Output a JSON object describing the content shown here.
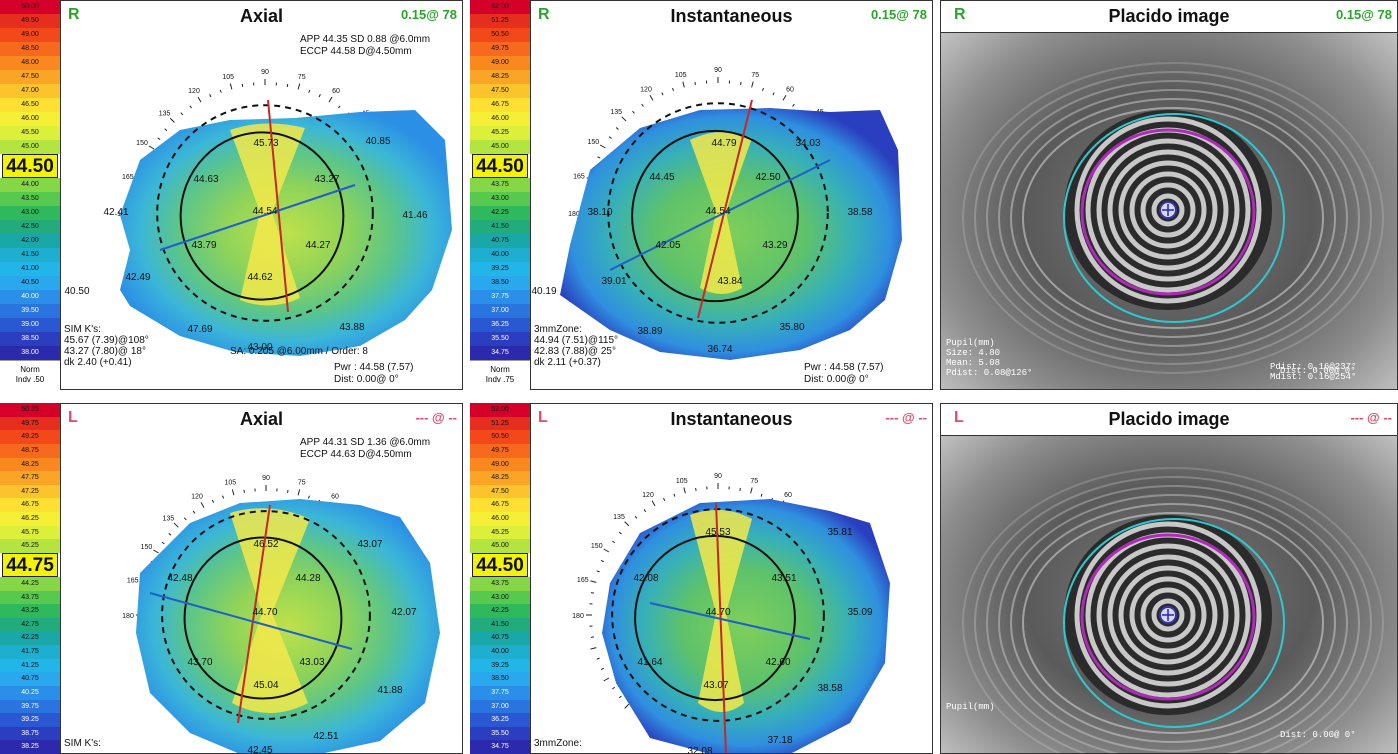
{
  "colors": {
    "scale_steps": [
      "#d5002a",
      "#e62e1e",
      "#f2481a",
      "#f76a1d",
      "#f9881f",
      "#fba526",
      "#fcc42c",
      "#fde032",
      "#f5ef35",
      "#dcef3a",
      "#b4e43f",
      "#86d747",
      "#58c94f",
      "#2fb95c",
      "#22ac7d",
      "#19a7a8",
      "#1eaed0",
      "#22b6e8",
      "#2aa8ee",
      "#2a8fe9",
      "#2a74e0",
      "#2a58d2",
      "#2b3ec0",
      "#2c2aac",
      "#291c8e"
    ],
    "accent_green": "#2aa52a",
    "accent_pink": "#e04a6a"
  },
  "panels": [
    {
      "id": "r_axial",
      "eye": "R",
      "title": "Axial",
      "corner": "0.15@ 78",
      "scale": {
        "top_values": [
          "50.00",
          "49.50",
          "49.00",
          "48.50",
          "48.00",
          "47.50",
          "47.00",
          "46.50",
          "46.00",
          "45.50",
          "45.00"
        ],
        "mid_value": "44.50",
        "bottom_values": [
          "44.00",
          "43.50",
          "43.00",
          "42.50",
          "42.00",
          "41.50",
          "41.00",
          "40.50",
          "40.00",
          "39.50",
          "39.00",
          "38.50",
          "38.00"
        ],
        "norm": "Norm",
        "indv": "Indv .50"
      },
      "info_top": [
        "APP 44.35 SD 0.88 @6.0mm",
        "ECCP 44.58 D@4.50mm"
      ],
      "sim": [
        "SIM K's:",
        "45.67 (7.39)@108°",
        "43.27 (7.80)@ 18°",
        "dk 2.40 (+0.41)"
      ],
      "sa": "SA: 0.205 @6.00mm / Order: 8",
      "pwr": "Pwr :  44.58 (7.57)",
      "dist": "Dist:  0.00@  0°",
      "values": [
        "45.73",
        "44.63",
        "43.27",
        "43.79",
        "44.27",
        "44.62",
        "42.41",
        "42.49",
        "40.50",
        "40.85",
        "41.46",
        "47.69",
        "43.00",
        "43.88",
        "44.54"
      ]
    },
    {
      "id": "r_inst",
      "eye": "R",
      "title": "Instantaneous",
      "corner": "0.15@ 78",
      "scale": {
        "top_values": [
          "52.00",
          "51.25",
          "50.50",
          "49.75",
          "49.00",
          "48.25",
          "47.50",
          "46.75",
          "46.00",
          "45.25",
          "45.00"
        ],
        "mid_value": "44.50",
        "bottom_values": [
          "43.75",
          "43.00",
          "42.25",
          "41.50",
          "40.75",
          "40.00",
          "39.25",
          "38.50",
          "37.75",
          "37.00",
          "36.25",
          "35.50",
          "34.75"
        ],
        "norm": "Norm",
        "indv": "Indv .75"
      },
      "info_top": [],
      "sim": [
        "3mmZone:",
        "44.94 (7.51)@115°",
        "42.83 (7.88)@ 25°",
        "dk 2.11 (+0.37)"
      ],
      "sa": "",
      "pwr": "Pwr :  44.58 (7.57)",
      "dist": "Dist:  0.00@  0°",
      "values": [
        "44.79",
        "44.45",
        "42.50",
        "42.05",
        "43.29",
        "43.84",
        "38.10",
        "39.01",
        "34.03",
        "38.58",
        "38.89",
        "36.74",
        "35.80",
        "40.19",
        "44.54"
      ]
    },
    {
      "id": "r_placido",
      "eye": "R",
      "title": "Placido image",
      "corner": "0.15@ 78",
      "dist": "Dist:  0.00@  0°",
      "pupil": [
        "Pupil(mm)",
        "Size: 4.80",
        "Mean: 5.08",
        "Pdist: 0.08@126°"
      ],
      "limbus": [
        "Pdist: 0.16@237°",
        "Mdist: 0.16@254°"
      ]
    },
    {
      "id": "l_axial",
      "eye": "L",
      "title": "Axial",
      "corner": "--- @ --",
      "scale": {
        "top_values": [
          "50.25",
          "49.75",
          "49.25",
          "48.75",
          "48.25",
          "47.75",
          "47.25",
          "46.75",
          "46.25",
          "45.75",
          "45.25"
        ],
        "mid_value": "44.75",
        "bottom_values": [
          "44.25",
          "43.75",
          "43.25",
          "42.75",
          "42.25",
          "41.75",
          "41.25",
          "40.75",
          "40.25",
          "39.75",
          "39.25",
          "38.75",
          "38.25"
        ],
        "norm": "",
        "indv": ""
      },
      "info_top": [
        "APP 44.31 SD 1.36 @6.0mm",
        "ECCP 44.63 D@4.50mm"
      ],
      "sim": [
        "SIM K's:"
      ],
      "sa": "",
      "pwr": "",
      "dist": "",
      "values": [
        "46.52",
        "42.48",
        "44.28",
        "43.70",
        "43.03",
        "45.04",
        "43.07",
        "42.07",
        "41.88",
        "42.51",
        "42.45",
        "44.70"
      ]
    },
    {
      "id": "l_inst",
      "eye": "L",
      "title": "Instantaneous",
      "corner": "--- @ --",
      "scale": {
        "top_values": [
          "52.00",
          "51.25",
          "50.50",
          "49.75",
          "49.00",
          "48.25",
          "47.50",
          "46.75",
          "46.00",
          "45.25",
          "45.00"
        ],
        "mid_value": "44.50",
        "bottom_values": [
          "43.75",
          "43.00",
          "42.25",
          "41.50",
          "40.75",
          "40.00",
          "39.25",
          "38.50",
          "37.75",
          "37.00",
          "36.25",
          "35.50",
          "34.75"
        ],
        "norm": "",
        "indv": ""
      },
      "info_top": [],
      "sim": [
        "3mmZone:"
      ],
      "sa": "",
      "pwr": "",
      "dist": "",
      "values": [
        "45.53",
        "42.08",
        "43.51",
        "41.64",
        "42.60",
        "43.07",
        "35.81",
        "35.09",
        "38.58",
        "37.18",
        "44.70",
        "32.08"
      ]
    },
    {
      "id": "l_placido",
      "eye": "L",
      "title": "Placido image",
      "corner": "--- @ --",
      "dist": "Dist:  0.00@  0°",
      "pupil": [
        "Pupil(mm)"
      ],
      "limbus": []
    }
  ]
}
